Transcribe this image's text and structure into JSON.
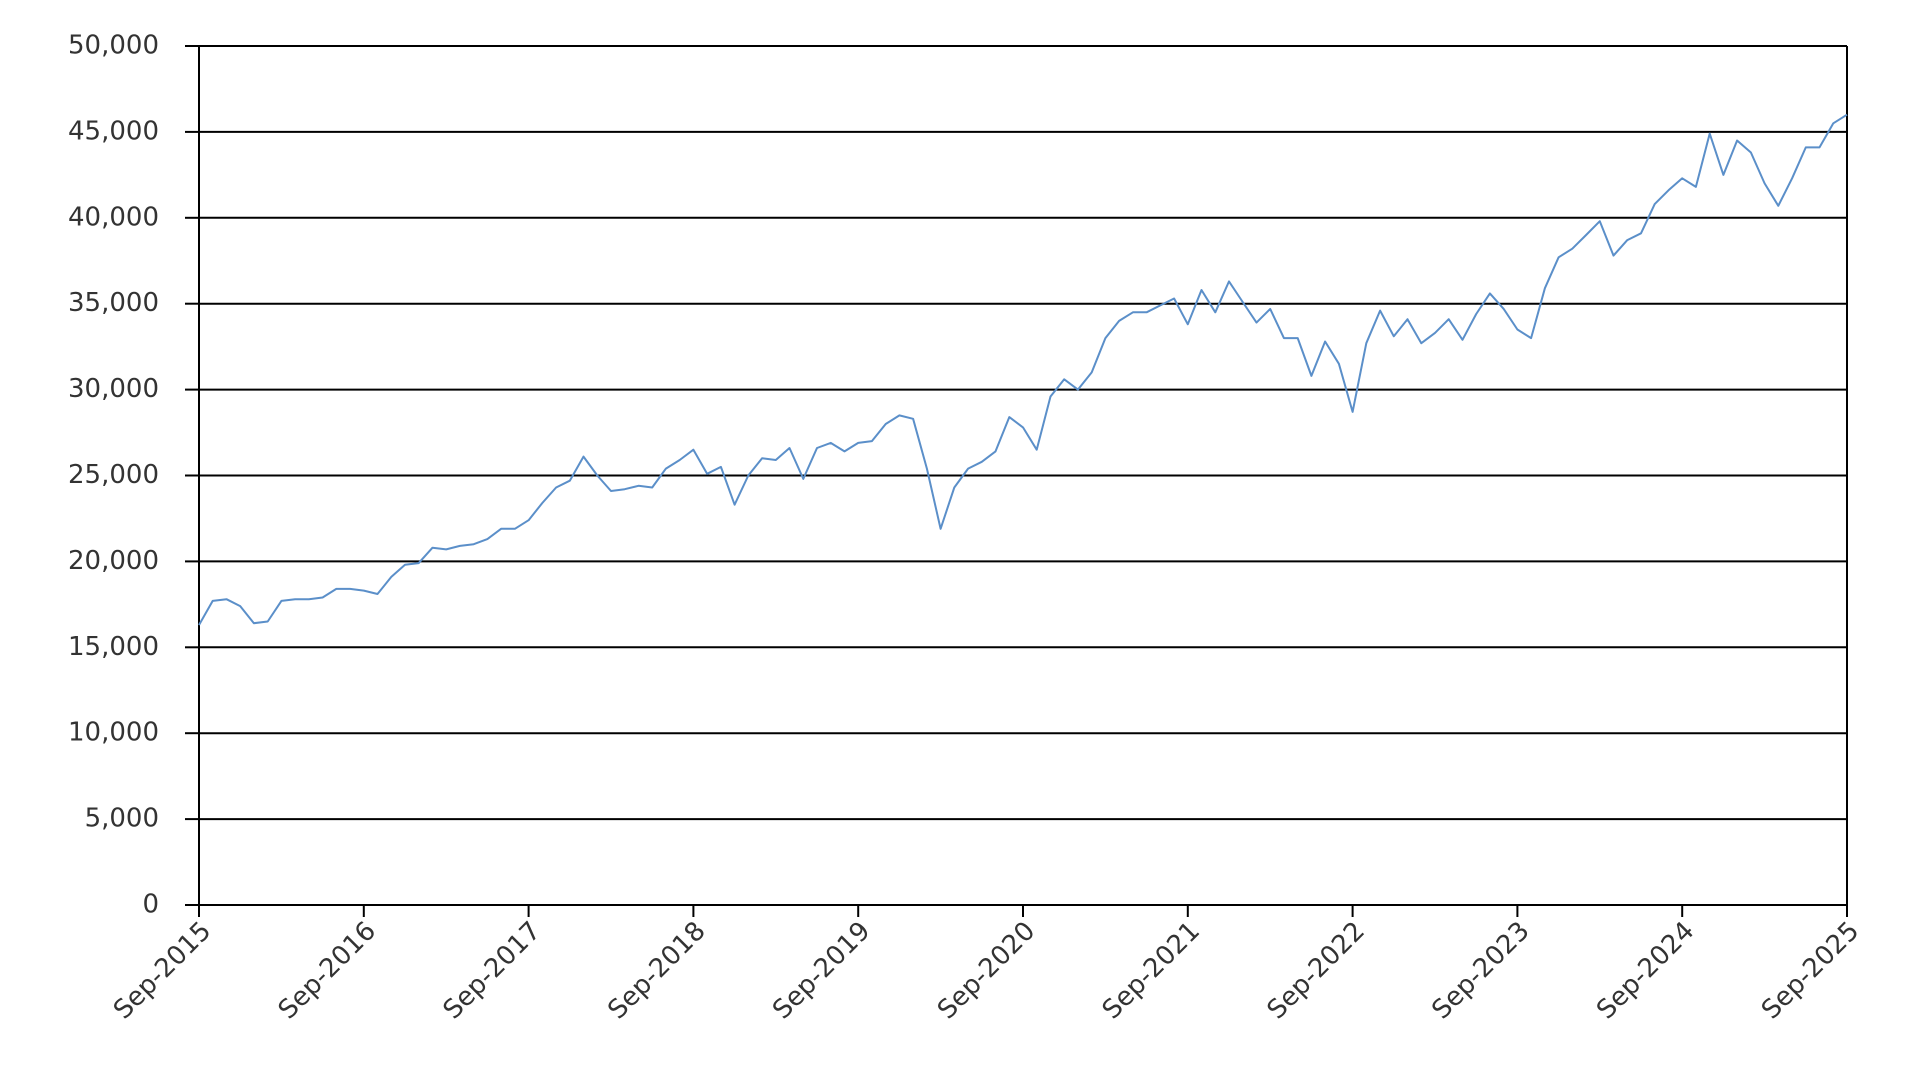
{
  "chart_data": {
    "type": "line",
    "x": [
      "2015-09",
      "2015-10",
      "2015-11",
      "2015-12",
      "2016-01",
      "2016-02",
      "2016-03",
      "2016-04",
      "2016-05",
      "2016-06",
      "2016-07",
      "2016-08",
      "2016-09",
      "2016-10",
      "2016-11",
      "2016-12",
      "2017-01",
      "2017-02",
      "2017-03",
      "2017-04",
      "2017-05",
      "2017-06",
      "2017-07",
      "2017-08",
      "2017-09",
      "2017-10",
      "2017-11",
      "2017-12",
      "2018-01",
      "2018-02",
      "2018-03",
      "2018-04",
      "2018-05",
      "2018-06",
      "2018-07",
      "2018-08",
      "2018-09",
      "2018-10",
      "2018-11",
      "2018-12",
      "2019-01",
      "2019-02",
      "2019-03",
      "2019-04",
      "2019-05",
      "2019-06",
      "2019-07",
      "2019-08",
      "2019-09",
      "2019-10",
      "2019-11",
      "2019-12",
      "2020-01",
      "2020-02",
      "2020-03",
      "2020-04",
      "2020-05",
      "2020-06",
      "2020-07",
      "2020-08",
      "2020-09",
      "2020-10",
      "2020-11",
      "2020-12",
      "2021-01",
      "2021-02",
      "2021-03",
      "2021-04",
      "2021-05",
      "2021-06",
      "2021-07",
      "2021-08",
      "2021-09",
      "2021-10",
      "2021-11",
      "2021-12",
      "2022-01",
      "2022-02",
      "2022-03",
      "2022-04",
      "2022-05",
      "2022-06",
      "2022-07",
      "2022-08",
      "2022-09",
      "2022-10",
      "2022-11",
      "2022-12",
      "2023-01",
      "2023-02",
      "2023-03",
      "2023-04",
      "2023-05",
      "2023-06",
      "2023-07",
      "2023-08",
      "2023-09",
      "2023-10",
      "2023-11",
      "2023-12",
      "2024-01",
      "2024-02",
      "2024-03",
      "2024-04",
      "2024-05",
      "2024-06",
      "2024-07",
      "2024-08",
      "2024-09",
      "2024-10",
      "2024-11",
      "2024-12",
      "2025-01",
      "2025-02",
      "2025-03",
      "2025-04",
      "2025-05",
      "2025-06",
      "2025-07",
      "2025-08",
      "2025-09"
    ],
    "series": [
      {
        "color": "#5b8fc9",
        "values": [
          16300,
          17700,
          17800,
          17400,
          16400,
          16500,
          17700,
          17800,
          17800,
          17900,
          18400,
          18400,
          18300,
          18100,
          19100,
          19800,
          19900,
          20800,
          20700,
          20900,
          21000,
          21300,
          21900,
          21900,
          22400,
          23400,
          24300,
          24700,
          26100,
          25000,
          24100,
          24200,
          24400,
          24300,
          25400,
          25900,
          26500,
          25100,
          25500,
          23300,
          25000,
          26000,
          25900,
          26600,
          24800,
          26600,
          26900,
          26400,
          26900,
          27000,
          28000,
          28500,
          28300,
          25400,
          21900,
          24300,
          25400,
          25800,
          26400,
          28400,
          27800,
          26500,
          29600,
          30600,
          30000,
          31000,
          33000,
          34000,
          34500,
          34500,
          34900,
          35300,
          33800,
          35800,
          34500,
          36300,
          35100,
          33900,
          34700,
          33000,
          33000,
          30800,
          32800,
          31500,
          28700,
          32700,
          34600,
          33100,
          34100,
          32700,
          33300,
          34100,
          32900,
          34400,
          35600,
          34700,
          33500,
          33000,
          35900,
          37700,
          38200,
          39000,
          39800,
          37800,
          38700,
          39100,
          40800,
          41600,
          42300,
          41800,
          44900,
          42500,
          44500,
          43800,
          42000,
          40700,
          42300,
          44100,
          44100,
          45500,
          46000
        ]
      }
    ],
    "xticks": [
      {
        "value": "2015-09",
        "label": "Sep-2015"
      },
      {
        "value": "2016-09",
        "label": "Sep-2016"
      },
      {
        "value": "2017-09",
        "label": "Sep-2017"
      },
      {
        "value": "2018-09",
        "label": "Sep-2018"
      },
      {
        "value": "2019-09",
        "label": "Sep-2019"
      },
      {
        "value": "2020-09",
        "label": "Sep-2020"
      },
      {
        "value": "2021-09",
        "label": "Sep-2021"
      },
      {
        "value": "2022-09",
        "label": "Sep-2022"
      },
      {
        "value": "2023-09",
        "label": "Sep-2023"
      },
      {
        "value": "2024-09",
        "label": "Sep-2024"
      },
      {
        "value": "2025-09",
        "label": "Sep-2025"
      }
    ],
    "ylim": [
      0,
      50000
    ],
    "yticks": [
      0,
      {
        "value": 5000,
        "label": "5,000"
      },
      {
        "value": 10000,
        "label": "10,000"
      },
      {
        "value": 15000,
        "label": "15,000"
      },
      {
        "value": 20000,
        "label": "20,000"
      },
      {
        "value": 25000,
        "label": "25,000"
      },
      {
        "value": 30000,
        "label": "30,000"
      },
      {
        "value": 35000,
        "label": "35,000"
      },
      {
        "value": 40000,
        "label": "40,000"
      },
      {
        "value": 45000,
        "label": "45,000"
      },
      {
        "value": 50000,
        "label": "50,000"
      }
    ],
    "grid": true
  }
}
